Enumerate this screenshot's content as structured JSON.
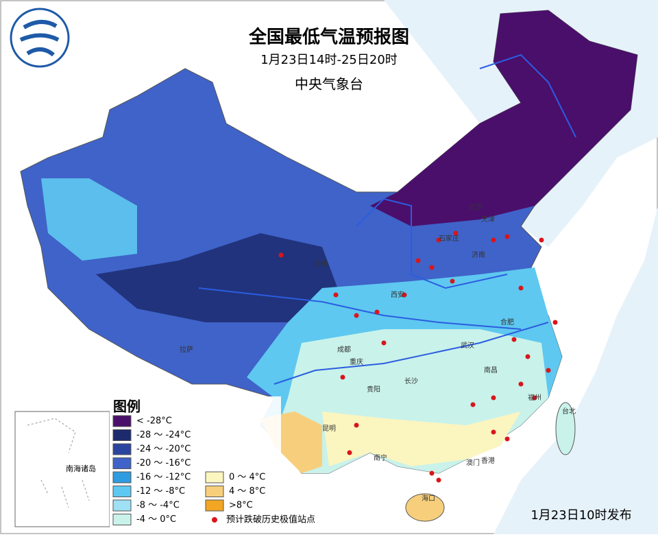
{
  "header": {
    "title": "全国最低气温预报图",
    "subtitle": "1月23日14时-25日20时",
    "issuer": "中央气象台"
  },
  "legend": {
    "title": "图例",
    "items": [
      {
        "label": "< -28°C",
        "color": "#4a0f6b"
      },
      {
        "label": "-28 ～ -24°C",
        "color": "#1c2a6e"
      },
      {
        "label": "-24 ～ -20°C",
        "color": "#2a44a0"
      },
      {
        "label": "-20 ～ -16°C",
        "color": "#3f63c8"
      },
      {
        "label": "-16 ～ -12°C",
        "color": "#2f9be0"
      },
      {
        "label": "-12 ～ -8°C",
        "color": "#5ec8f0"
      },
      {
        "label": "-8 ～ -4°C",
        "color": "#9fe0f5"
      },
      {
        "label": "-4 ～ 0°C",
        "color": "#c9f2ea"
      },
      {
        "label": "0 ～ 4°C",
        "color": "#fbf5c0"
      },
      {
        "label": "4 ～ 8°C",
        "color": "#f7cf7c"
      },
      {
        "label": ">8°C",
        "color": "#f2a623"
      }
    ],
    "record_marker": {
      "label": "预计跌破历史极值站点",
      "color": "#d8161b"
    }
  },
  "inset": {
    "label": "南海诸岛"
  },
  "cities": [
    "北京",
    "天津",
    "石家庄",
    "济南",
    "西安",
    "兰州",
    "成都",
    "重庆",
    "贵阳",
    "昆明",
    "南宁",
    "长沙",
    "武汉",
    "南昌",
    "合肥",
    "福州",
    "台北",
    "香港",
    "澳门",
    "海口",
    "拉萨"
  ],
  "footer": {
    "issued": "1月23日10时发布"
  }
}
